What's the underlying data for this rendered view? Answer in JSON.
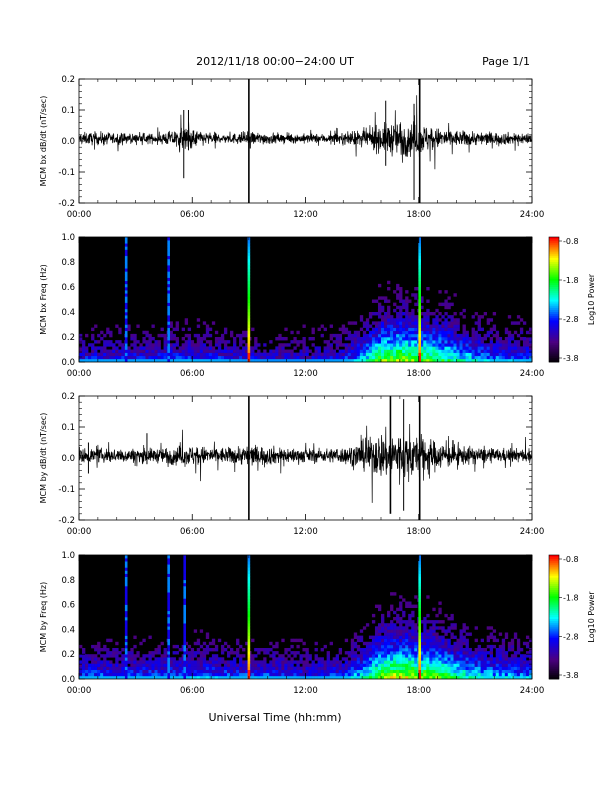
{
  "header": {
    "title": "2012/11/18  00:00−24:00 UT",
    "page": "Page 1/1"
  },
  "footer": {
    "xlabel": "Universal Time (hh:mm)"
  },
  "colorbar": {
    "label": "Log10 Power",
    "ticks": [
      "-0.8",
      "-1.8",
      "-2.8",
      "-3.8"
    ],
    "range": [
      -3.8,
      -0.8
    ],
    "colors": [
      "#000000",
      "#4b0082",
      "#0000ff",
      "#00ffff",
      "#00ff00",
      "#ffff00",
      "#ff0000"
    ]
  },
  "chart_data": [
    {
      "type": "line",
      "panel": "bx-timeseries",
      "ylabel": "MCM bx dB/dt (nT/sec)",
      "xlim": [
        0,
        24
      ],
      "ylim": [
        -0.2,
        0.2
      ],
      "x_ticks": [
        "00:00",
        "06:00",
        "12:00",
        "18:00",
        "24:00"
      ],
      "y_ticks": [
        "0.2",
        "0.1",
        "0.0",
        "-0.1",
        "-0.2"
      ],
      "envelope": {
        "hours": [
          0,
          1,
          2,
          3,
          4,
          5,
          5.5,
          6,
          7,
          8,
          9,
          10,
          11,
          12,
          13,
          14,
          15,
          16,
          17,
          18,
          19,
          20,
          21,
          22,
          23,
          24
        ],
        "amplitude": [
          0.025,
          0.028,
          0.025,
          0.02,
          0.02,
          0.035,
          0.05,
          0.04,
          0.025,
          0.02,
          0.03,
          0.025,
          0.02,
          0.02,
          0.02,
          0.025,
          0.035,
          0.06,
          0.08,
          0.07,
          0.045,
          0.035,
          0.03,
          0.028,
          0.025,
          0.025
        ]
      },
      "spikes": [
        {
          "hour": 9.0,
          "min": -0.2,
          "max": 0.2
        },
        {
          "hour": 18.05,
          "min": -0.2,
          "max": 0.2
        },
        {
          "hour": 17.75,
          "min": -0.19,
          "max": 0.12
        },
        {
          "hour": 5.55,
          "min": -0.12,
          "max": 0.1
        },
        {
          "hour": 5.8,
          "min": -0.03,
          "max": 0.1
        },
        {
          "hour": 16.25,
          "min": -0.08,
          "max": 0.13
        }
      ]
    },
    {
      "type": "heatmap",
      "panel": "bx-spectrogram",
      "ylabel": "MCM bx Freq (Hz)",
      "xlim": [
        0,
        24
      ],
      "ylim": [
        0,
        1.0
      ],
      "x_ticks": [
        "00:00",
        "06:00",
        "12:00",
        "18:00",
        "24:00"
      ],
      "y_ticks": [
        "1.0",
        "0.8",
        "0.6",
        "0.4",
        "0.2",
        "0.0"
      ],
      "activity": {
        "hours": [
          0,
          2,
          4,
          6,
          8,
          10,
          12,
          14,
          15,
          16,
          17,
          18,
          19,
          20,
          21,
          22,
          24
        ],
        "level": [
          0.35,
          0.35,
          0.35,
          0.4,
          0.35,
          0.3,
          0.3,
          0.35,
          0.5,
          0.75,
          0.8,
          0.75,
          0.7,
          0.6,
          0.5,
          0.45,
          0.4
        ]
      },
      "vertical_lines": [
        {
          "hour": 2.5,
          "strength": 0.35
        },
        {
          "hour": 4.75,
          "strength": 0.35
        },
        {
          "hour": 9.0,
          "strength": 1.0
        },
        {
          "hour": 18.05,
          "strength": 1.0
        }
      ]
    },
    {
      "type": "line",
      "panel": "by-timeseries",
      "ylabel": "MCM by dB/dt (nT/sec)",
      "xlim": [
        0,
        24
      ],
      "ylim": [
        -0.2,
        0.2
      ],
      "x_ticks": [
        "00:00",
        "06:00",
        "12:00",
        "18:00",
        "24:00"
      ],
      "y_ticks": [
        "0.2",
        "0.1",
        "0.0",
        "-0.1",
        "-0.2"
      ],
      "envelope": {
        "hours": [
          0,
          1,
          2,
          3,
          4,
          5,
          6,
          7,
          8,
          9,
          10,
          11,
          12,
          13,
          14,
          15,
          16,
          17,
          18,
          19,
          20,
          21,
          22,
          23,
          24
        ],
        "amplitude": [
          0.03,
          0.03,
          0.03,
          0.03,
          0.03,
          0.04,
          0.045,
          0.035,
          0.035,
          0.045,
          0.04,
          0.035,
          0.03,
          0.03,
          0.035,
          0.06,
          0.1,
          0.11,
          0.09,
          0.06,
          0.045,
          0.035,
          0.03,
          0.03,
          0.03
        ]
      },
      "spikes": [
        {
          "hour": 9.0,
          "min": -0.2,
          "max": 0.2
        },
        {
          "hour": 18.05,
          "min": -0.2,
          "max": 0.2
        },
        {
          "hour": 3.6,
          "min": -0.02,
          "max": 0.08
        },
        {
          "hour": 0.5,
          "min": -0.05,
          "max": 0.05
        },
        {
          "hour": 16.5,
          "min": -0.18,
          "max": 0.2
        },
        {
          "hour": 17.2,
          "min": -0.17,
          "max": 0.19
        }
      ]
    },
    {
      "type": "heatmap",
      "panel": "by-spectrogram",
      "ylabel": "MCM by Freq (Hz)",
      "xlim": [
        0,
        24
      ],
      "ylim": [
        0,
        1.0
      ],
      "x_ticks": [
        "00:00",
        "06:00",
        "12:00",
        "18:00",
        "24:00"
      ],
      "y_ticks": [
        "1.0",
        "0.8",
        "0.6",
        "0.4",
        "0.2",
        "0.0"
      ],
      "activity": {
        "hours": [
          0,
          2,
          4,
          6,
          8,
          10,
          12,
          14,
          15,
          16,
          17,
          18,
          19,
          20,
          21,
          22,
          24
        ],
        "level": [
          0.4,
          0.4,
          0.4,
          0.45,
          0.4,
          0.4,
          0.35,
          0.4,
          0.55,
          0.8,
          0.85,
          0.8,
          0.75,
          0.65,
          0.55,
          0.5,
          0.45
        ]
      },
      "vertical_lines": [
        {
          "hour": 2.5,
          "strength": 0.4
        },
        {
          "hour": 4.75,
          "strength": 0.35
        },
        {
          "hour": 5.6,
          "strength": 0.25
        },
        {
          "hour": 9.0,
          "strength": 1.0
        },
        {
          "hour": 18.05,
          "strength": 1.0
        }
      ]
    }
  ]
}
